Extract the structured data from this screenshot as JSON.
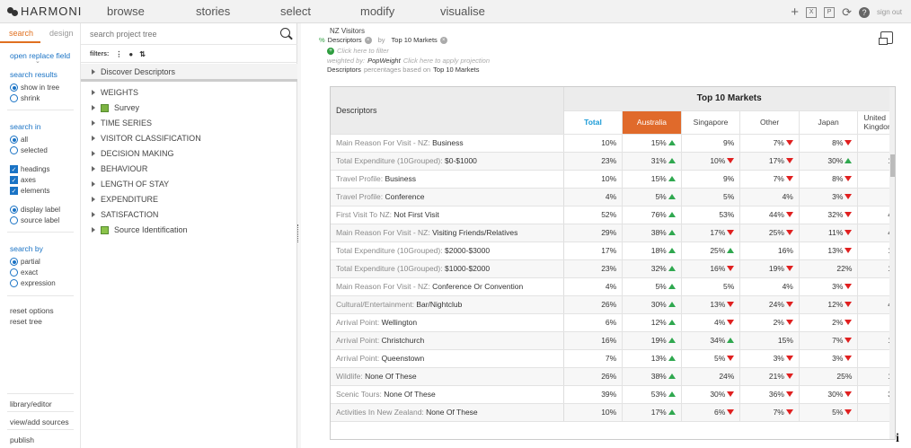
{
  "app": {
    "logo": "HARMONI"
  },
  "nav": [
    {
      "label": "browse"
    },
    {
      "label": "stories"
    },
    {
      "label": "select"
    },
    {
      "label": "modify"
    },
    {
      "label": "visualise"
    }
  ],
  "topbar": {
    "plus_icon": "+",
    "signout": "sign out"
  },
  "left": {
    "tabs": {
      "search": "search",
      "design": "design"
    },
    "open_replace": "open replace field",
    "search_results": {
      "title": "search results",
      "show_in_tree": "show in tree",
      "shrink": "shrink"
    },
    "search_in": {
      "title": "search in",
      "all": "all",
      "selected": "selected",
      "headings": "headings",
      "axes": "axes",
      "elements": "elements",
      "display_label": "display label",
      "source_label": "source label"
    },
    "search_by": {
      "title": "search by",
      "partial": "partial",
      "exact": "exact",
      "expression": "expression"
    },
    "reset_options": "reset options",
    "reset_tree": "reset tree",
    "library_editor": "library/editor",
    "view_add_sources": "view/add sources",
    "publish": "publish"
  },
  "tree": {
    "search_placeholder": "search project tree",
    "filters_label": "filters:",
    "discover": "Discover Descriptors",
    "items": [
      {
        "label": "WEIGHTS",
        "icon": ""
      },
      {
        "label": "Survey",
        "icon": "survey"
      },
      {
        "label": "TIME SERIES",
        "icon": ""
      },
      {
        "label": "VISITOR CLASSIFICATION",
        "icon": ""
      },
      {
        "label": "DECISION MAKING",
        "icon": ""
      },
      {
        "label": "BEHAVIOUR",
        "icon": ""
      },
      {
        "label": "LENGTH OF STAY",
        "icon": ""
      },
      {
        "label": "EXPENDITURE",
        "icon": ""
      },
      {
        "label": "SATISFACTION",
        "icon": ""
      },
      {
        "label": "Source Identification",
        "icon": "source"
      }
    ]
  },
  "report": {
    "title": "NZ Visitors",
    "pct_symbol": "%",
    "row_var": "Descriptors",
    "by": "by",
    "col_var": "Top 10 Markets",
    "filter_hint": "Click here to filter",
    "weighted_by": "weighted by:",
    "weight": "PopWeight",
    "projection_hint": "Click here to apply projection",
    "basis_row": "Descriptors",
    "basis_text": "percentages based on",
    "basis_col": "Top 10 Markets"
  },
  "table": {
    "desc_header": "Descriptors",
    "group_header": "Top 10 Markets",
    "columns": [
      "Total",
      "Australia",
      "Singapore",
      "Other",
      "Japan",
      "United Kingdom"
    ],
    "rows": [
      {
        "k": "Main Reason For Visit - NZ:",
        "v": "Business",
        "cells": [
          [
            "10%",
            ""
          ],
          [
            "15%",
            "up"
          ],
          [
            "9%",
            ""
          ],
          [
            "7%",
            "down"
          ],
          [
            "8%",
            "down"
          ],
          [
            "",
            ""
          ]
        ]
      },
      {
        "k": "Total Expenditure (10Grouped):",
        "v": "$0-$1000",
        "cells": [
          [
            "23%",
            ""
          ],
          [
            "31%",
            "up"
          ],
          [
            "10%",
            "down"
          ],
          [
            "17%",
            "down"
          ],
          [
            "30%",
            "up"
          ],
          [
            "1",
            ""
          ]
        ]
      },
      {
        "k": "Travel Profile:",
        "v": "Business",
        "cells": [
          [
            "10%",
            ""
          ],
          [
            "15%",
            "up"
          ],
          [
            "9%",
            ""
          ],
          [
            "7%",
            "down"
          ],
          [
            "8%",
            "down"
          ],
          [
            "",
            ""
          ]
        ]
      },
      {
        "k": "Travel Profile:",
        "v": "Conference",
        "cells": [
          [
            "4%",
            ""
          ],
          [
            "5%",
            "up"
          ],
          [
            "5%",
            ""
          ],
          [
            "4%",
            ""
          ],
          [
            "3%",
            "down"
          ],
          [
            "",
            ""
          ]
        ]
      },
      {
        "k": "First Visit To NZ:",
        "v": "Not First Visit",
        "cells": [
          [
            "52%",
            ""
          ],
          [
            "76%",
            "up"
          ],
          [
            "53%",
            ""
          ],
          [
            "44%",
            "down"
          ],
          [
            "32%",
            "down"
          ],
          [
            "4",
            ""
          ]
        ]
      },
      {
        "k": "Main Reason For Visit - NZ:",
        "v": "Visiting Friends/Relatives",
        "cells": [
          [
            "29%",
            ""
          ],
          [
            "38%",
            "up"
          ],
          [
            "17%",
            "down"
          ],
          [
            "25%",
            "down"
          ],
          [
            "11%",
            "down"
          ],
          [
            "4",
            ""
          ]
        ]
      },
      {
        "k": "Total Expenditure (10Grouped):",
        "v": "$2000-$3000",
        "cells": [
          [
            "17%",
            ""
          ],
          [
            "18%",
            "up"
          ],
          [
            "25%",
            "up"
          ],
          [
            "16%",
            ""
          ],
          [
            "13%",
            "down"
          ],
          [
            "1",
            ""
          ]
        ]
      },
      {
        "k": "Total Expenditure (10Grouped):",
        "v": "$1000-$2000",
        "cells": [
          [
            "23%",
            ""
          ],
          [
            "32%",
            "up"
          ],
          [
            "16%",
            "down"
          ],
          [
            "19%",
            "down"
          ],
          [
            "22%",
            ""
          ],
          [
            "1",
            ""
          ]
        ]
      },
      {
        "k": "Main Reason For Visit - NZ:",
        "v": "Conference Or Convention",
        "cells": [
          [
            "4%",
            ""
          ],
          [
            "5%",
            "up"
          ],
          [
            "5%",
            ""
          ],
          [
            "4%",
            ""
          ],
          [
            "3%",
            "down"
          ],
          [
            "",
            ""
          ]
        ]
      },
      {
        "k": "Cultural/Entertainment:",
        "v": "Bar/Nightclub",
        "cells": [
          [
            "26%",
            ""
          ],
          [
            "30%",
            "up"
          ],
          [
            "13%",
            "down"
          ],
          [
            "24%",
            "down"
          ],
          [
            "12%",
            "down"
          ],
          [
            "4",
            ""
          ]
        ]
      },
      {
        "k": "Arrival Point:",
        "v": "Wellington",
        "cells": [
          [
            "6%",
            ""
          ],
          [
            "12%",
            "up"
          ],
          [
            "4%",
            "down"
          ],
          [
            "2%",
            "down"
          ],
          [
            "2%",
            "down"
          ],
          [
            "",
            ""
          ]
        ]
      },
      {
        "k": "Arrival Point:",
        "v": "Christchurch",
        "cells": [
          [
            "16%",
            ""
          ],
          [
            "19%",
            "up"
          ],
          [
            "34%",
            "up"
          ],
          [
            "15%",
            ""
          ],
          [
            "7%",
            "down"
          ],
          [
            "1",
            ""
          ]
        ]
      },
      {
        "k": "Arrival Point:",
        "v": "Queenstown",
        "cells": [
          [
            "7%",
            ""
          ],
          [
            "13%",
            "up"
          ],
          [
            "5%",
            "down"
          ],
          [
            "3%",
            "down"
          ],
          [
            "3%",
            "down"
          ],
          [
            "",
            ""
          ]
        ]
      },
      {
        "k": "Wildlife:",
        "v": "None Of These",
        "cells": [
          [
            "26%",
            ""
          ],
          [
            "38%",
            "up"
          ],
          [
            "24%",
            ""
          ],
          [
            "21%",
            "down"
          ],
          [
            "25%",
            ""
          ],
          [
            "1",
            ""
          ]
        ]
      },
      {
        "k": "Scenic Tours:",
        "v": "None Of These",
        "cells": [
          [
            "39%",
            ""
          ],
          [
            "53%",
            "up"
          ],
          [
            "30%",
            "down"
          ],
          [
            "36%",
            "down"
          ],
          [
            "30%",
            "down"
          ],
          [
            "3",
            ""
          ]
        ]
      },
      {
        "k": "Activities In New Zealand:",
        "v": "None Of These",
        "cells": [
          [
            "10%",
            ""
          ],
          [
            "17%",
            "up"
          ],
          [
            "6%",
            "down"
          ],
          [
            "7%",
            "down"
          ],
          [
            "5%",
            "down"
          ],
          [
            "",
            ""
          ]
        ]
      }
    ]
  },
  "colors": {
    "accent": "#e07020",
    "link": "#1a73c5",
    "total": "#1a9bd7",
    "highlight": "#e06a2b",
    "up": "#2fa84f",
    "down": "#e02020"
  }
}
